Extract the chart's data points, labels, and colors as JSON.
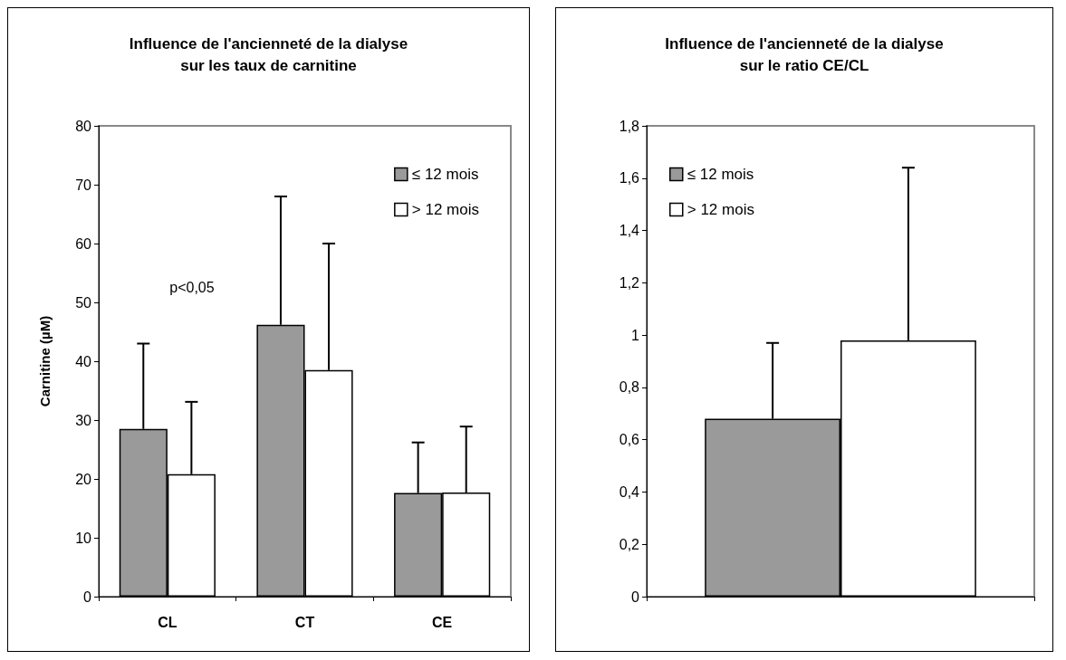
{
  "chart_data": [
    {
      "type": "bar",
      "title": "Influence de l'ancienneté de la dialyse\nsur les taux de carnitine",
      "ylabel": "Carnitine (µM)",
      "categories": [
        "CL",
        "CT",
        "CE"
      ],
      "series": [
        {
          "name": "≤ 12 mois",
          "color": "#9a9a9a",
          "values": [
            28.5,
            46.2,
            17.6
          ],
          "errors": [
            [
              28.5,
              43
            ],
            [
              46.2,
              68
            ],
            [
              17.6,
              26.2
            ]
          ]
        },
        {
          "name": "> 12 mois",
          "color": "#ffffff",
          "values": [
            20.8,
            38.5,
            17.7
          ],
          "errors": [
            [
              20.8,
              33.1
            ],
            [
              38.5,
              60
            ],
            [
              17.7,
              28.9
            ]
          ]
        }
      ],
      "ylim": [
        0,
        80
      ],
      "yticks": [
        0,
        10,
        20,
        30,
        40,
        50,
        60,
        70,
        80
      ],
      "legend": "top right",
      "grid": false,
      "annotations": [
        "p<0,05"
      ]
    },
    {
      "type": "bar",
      "title": "Influence de l'ancienneté de la dialyse\nsur le ratio CE/CL",
      "categories": [
        null
      ],
      "series": [
        {
          "name": "≤ 12 mois",
          "color": "#9a9a9a",
          "values": [
            0.68
          ],
          "errors": [
            [
              0.68,
              0.97
            ]
          ]
        },
        {
          "name": "> 12 mois",
          "color": "#ffffff",
          "values": [
            0.98
          ],
          "errors": [
            [
              0.98,
              1.64
            ]
          ]
        }
      ],
      "ylim": [
        0,
        1.8
      ],
      "yticks": [
        0,
        {
          "value": 0.2,
          "label": "0,2"
        },
        {
          "value": 0.4,
          "label": "0,4"
        },
        {
          "value": 0.6,
          "label": "0,6"
        },
        {
          "value": 0.8,
          "label": "0,8"
        },
        1,
        {
          "value": 1.2,
          "label": "1,2"
        },
        {
          "value": 1.4,
          "label": "1,4"
        },
        {
          "value": 1.6,
          "label": "1,6"
        },
        {
          "value": 1.8,
          "label": "1,8"
        }
      ],
      "legend": "top left",
      "grid": false
    }
  ]
}
